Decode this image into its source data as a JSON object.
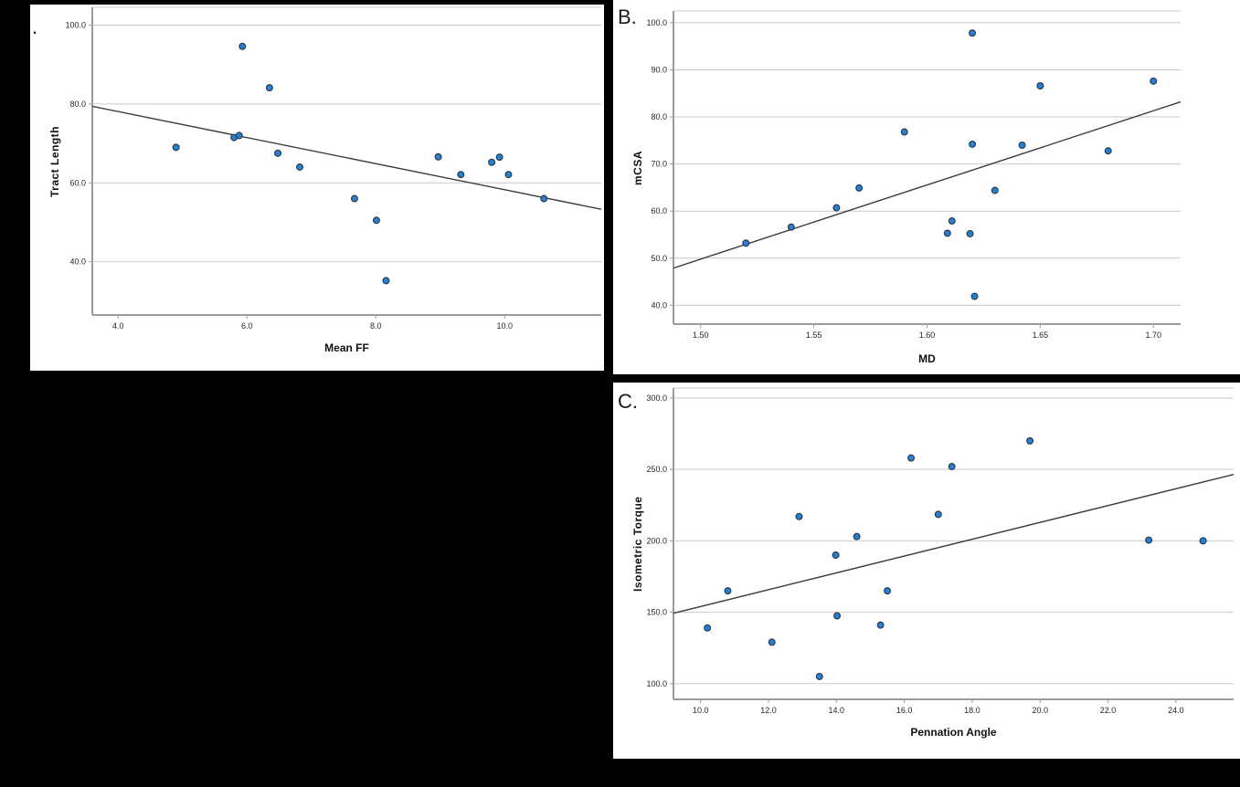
{
  "page": {
    "background_color": "#000000",
    "panel_color": "#ffffff"
  },
  "style": {
    "point_fill": "#2381d9",
    "point_stroke": "#2f3a45",
    "fit_line_color": "#3c3c3c",
    "grid_color": "#c9c9c9",
    "axis_color": "#9b9b9b",
    "tick_text_color": "#262626"
  },
  "chart_data": [
    {
      "type": "scatter",
      "corner_label": ".",
      "title": "",
      "xlabel": "Mean FF",
      "ylabel": "Tract Length",
      "xlim": [
        3.6,
        11.5
      ],
      "ylim": [
        26.5,
        104.5
      ],
      "grid": "horizontal",
      "x_ticks": [
        [
          4.0,
          "4.0"
        ],
        [
          6.0,
          "6.0"
        ],
        [
          8.0,
          "8.0"
        ],
        [
          10.0,
          "10.0"
        ]
      ],
      "y_ticks": [
        [
          40.0,
          "40.0"
        ],
        [
          60.0,
          "60.0"
        ],
        [
          80.0,
          "80.0"
        ],
        [
          100.0,
          "100.0"
        ]
      ],
      "points": [
        [
          4.9,
          69.0
        ],
        [
          5.8,
          71.5
        ],
        [
          5.88,
          72.0
        ],
        [
          5.93,
          94.6
        ],
        [
          6.35,
          84.1
        ],
        [
          6.48,
          67.5
        ],
        [
          6.82,
          64.0
        ],
        [
          7.67,
          56.0
        ],
        [
          8.01,
          50.5
        ],
        [
          8.16,
          35.2
        ],
        [
          8.97,
          66.6
        ],
        [
          9.32,
          62.1
        ],
        [
          9.8,
          65.2
        ],
        [
          9.92,
          66.5
        ],
        [
          10.06,
          62.1
        ],
        [
          10.61,
          56.0
        ]
      ],
      "fit_line": {
        "x1": 3.6,
        "y1": 79.4,
        "x2": 11.5,
        "y2": 53.3
      }
    },
    {
      "type": "scatter",
      "corner_label": "B.",
      "title": "",
      "xlabel": "MD",
      "ylabel": "mCSA",
      "xlim": [
        1.488,
        1.712
      ],
      "ylim": [
        36.0,
        102.5
      ],
      "grid": "horizontal",
      "x_ticks": [
        [
          1.5,
          "1.50"
        ],
        [
          1.55,
          "1.55"
        ],
        [
          1.6,
          "1.60"
        ],
        [
          1.65,
          "1.65"
        ],
        [
          1.7,
          "1.70"
        ]
      ],
      "y_ticks": [
        [
          40.0,
          "40.0"
        ],
        [
          50.0,
          "50.0"
        ],
        [
          60.0,
          "60.0"
        ],
        [
          70.0,
          "70.0"
        ],
        [
          80.0,
          "80.0"
        ],
        [
          90.0,
          "90.0"
        ],
        [
          100.0,
          "100.0"
        ]
      ],
      "points": [
        [
          1.52,
          53.2
        ],
        [
          1.54,
          56.6
        ],
        [
          1.56,
          60.7
        ],
        [
          1.57,
          64.9
        ],
        [
          1.59,
          76.8
        ],
        [
          1.609,
          55.3
        ],
        [
          1.611,
          57.9
        ],
        [
          1.619,
          55.2
        ],
        [
          1.62,
          74.2
        ],
        [
          1.62,
          97.8
        ],
        [
          1.621,
          41.9
        ],
        [
          1.63,
          64.4
        ],
        [
          1.642,
          74.0
        ],
        [
          1.65,
          86.6
        ],
        [
          1.68,
          72.8
        ],
        [
          1.7,
          87.6
        ]
      ],
      "fit_line": {
        "x1": 1.488,
        "y1": 47.9,
        "x2": 1.712,
        "y2": 83.2
      }
    },
    {
      "type": "scatter",
      "corner_label": "C.",
      "title": "",
      "xlabel": "Pennation Angle",
      "ylabel": "Isometric Torque",
      "xlim": [
        9.2,
        25.7
      ],
      "ylim": [
        89.0,
        307.0
      ],
      "grid": "horizontal",
      "x_ticks": [
        [
          10.0,
          "10.0"
        ],
        [
          12.0,
          "12.0"
        ],
        [
          14.0,
          "14.0"
        ],
        [
          16.0,
          "16.0"
        ],
        [
          18.0,
          "18.0"
        ],
        [
          20.0,
          "20.0"
        ],
        [
          22.0,
          "22.0"
        ],
        [
          24.0,
          "24.0"
        ]
      ],
      "y_ticks": [
        [
          100.0,
          "100.0"
        ],
        [
          150.0,
          "150.0"
        ],
        [
          200.0,
          "200.0"
        ],
        [
          250.0,
          "250.0"
        ],
        [
          300.0,
          "300.0"
        ]
      ],
      "points": [
        [
          10.2,
          139.0
        ],
        [
          10.8,
          165.0
        ],
        [
          12.1,
          129.0
        ],
        [
          12.9,
          217.0
        ],
        [
          13.5,
          105.0
        ],
        [
          13.98,
          190.0
        ],
        [
          14.02,
          147.5
        ],
        [
          14.6,
          203.0
        ],
        [
          15.3,
          141.0
        ],
        [
          15.5,
          165.0
        ],
        [
          16.2,
          258.0
        ],
        [
          17.0,
          218.5
        ],
        [
          17.4,
          252.0
        ],
        [
          19.7,
          270.0
        ],
        [
          23.2,
          200.5
        ],
        [
          24.8,
          200.0
        ]
      ],
      "fit_line": {
        "x1": 9.2,
        "y1": 149.3,
        "x2": 25.7,
        "y2": 246.5
      }
    }
  ]
}
